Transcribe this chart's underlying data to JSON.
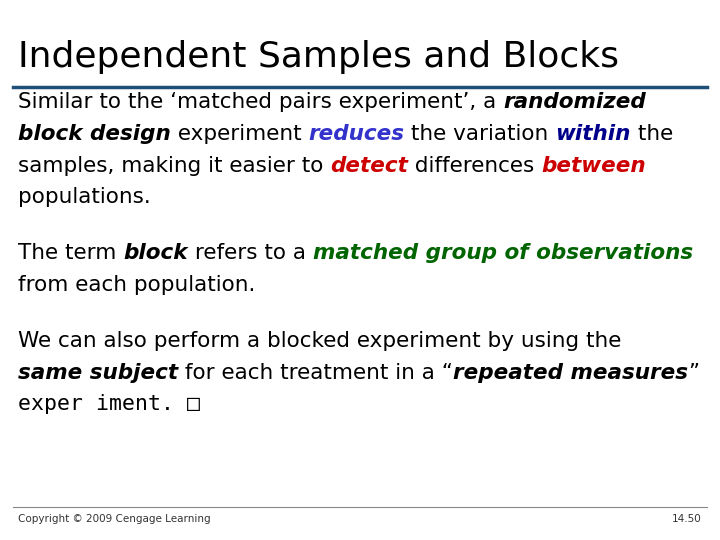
{
  "title": "Independent Samples and Blocks",
  "title_color": "#000000",
  "title_fontsize": 26,
  "line_color": "#1F4E79",
  "bg_color": "#FFFFFF",
  "copyright": "Copyright © 2009 Cengage Learning",
  "page_num": "14.50",
  "body_fontsize": 15.5,
  "fig_width": 7.2,
  "fig_height": 5.4,
  "para1_segments": [
    {
      "text": "Similar to the ‘matched pairs experiment’, a ",
      "style": "normal",
      "color": "#000000"
    },
    {
      "text": "randomized",
      "style": "bolditalic",
      "color": "#000000"
    },
    {
      "text": "\n",
      "style": "normal",
      "color": "#000000"
    },
    {
      "text": "block design",
      "style": "bolditalic",
      "color": "#000000"
    },
    {
      "text": " experiment ",
      "style": "normal",
      "color": "#000000"
    },
    {
      "text": "reduces",
      "style": "bolditalic",
      "color": "#3333CC"
    },
    {
      "text": " the variation ",
      "style": "normal",
      "color": "#000000"
    },
    {
      "text": "within",
      "style": "bolditalic",
      "color": "#00008B"
    },
    {
      "text": " the",
      "style": "normal",
      "color": "#000000"
    },
    {
      "text": "\n",
      "style": "normal",
      "color": "#000000"
    },
    {
      "text": "samples, making it easier to ",
      "style": "normal",
      "color": "#000000"
    },
    {
      "text": "detect",
      "style": "bolditalic",
      "color": "#CC0000"
    },
    {
      "text": " differences ",
      "style": "normal",
      "color": "#000000"
    },
    {
      "text": "between",
      "style": "bolditalic",
      "color": "#CC0000"
    },
    {
      "text": "\n",
      "style": "normal",
      "color": "#000000"
    },
    {
      "text": "populations.",
      "style": "normal",
      "color": "#000000"
    }
  ],
  "para2_segments": [
    {
      "text": "The term ",
      "style": "normal",
      "color": "#000000"
    },
    {
      "text": "block",
      "style": "bolditalic",
      "color": "#000000"
    },
    {
      "text": " refers to a ",
      "style": "normal",
      "color": "#000000"
    },
    {
      "text": "matched group of observations",
      "style": "bolditalic",
      "color": "#006400"
    },
    {
      "text": "\n",
      "style": "normal",
      "color": "#000000"
    },
    {
      "text": "from each population.",
      "style": "normal",
      "color": "#000000"
    }
  ],
  "para3_segments": [
    {
      "text": "We can also perform a blocked experiment by using the",
      "style": "normal",
      "color": "#000000"
    },
    {
      "text": "\n",
      "style": "normal",
      "color": "#000000"
    },
    {
      "text": "same subject",
      "style": "bolditalic",
      "color": "#000000"
    },
    {
      "text": " for each treatment in a “",
      "style": "normal",
      "color": "#000000"
    },
    {
      "text": "repeated measures",
      "style": "bolditalic",
      "color": "#000000"
    },
    {
      "text": "”",
      "style": "normal",
      "color": "#000000"
    },
    {
      "text": "\n",
      "style": "normal",
      "color": "#000000"
    },
    {
      "text": "exper iment. □",
      "style": "mono",
      "color": "#000000"
    }
  ]
}
